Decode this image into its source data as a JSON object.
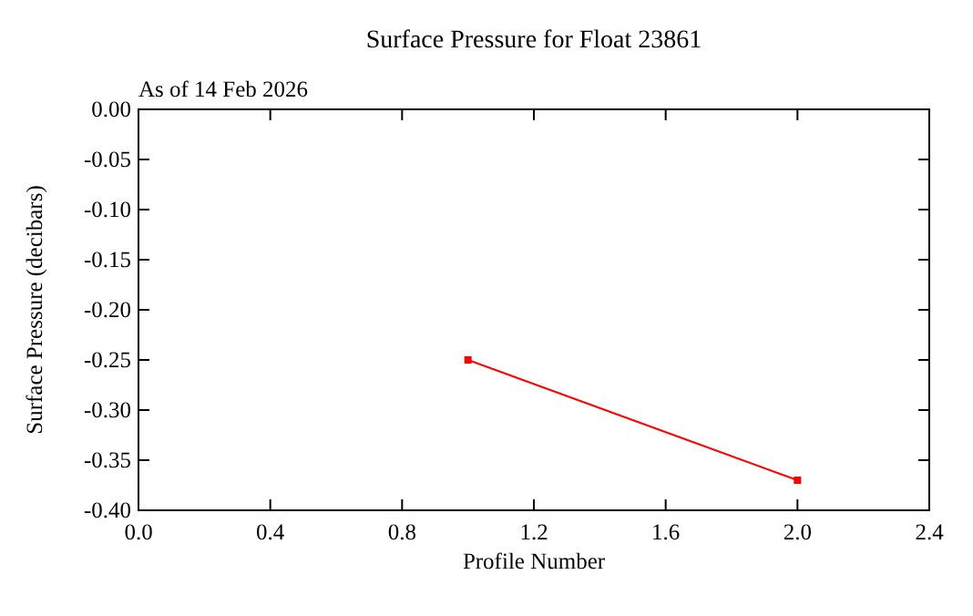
{
  "chart_data": {
    "type": "line",
    "title": "Surface Pressure for Float 23861",
    "subtitle": "As of 14 Feb 2026",
    "xlabel": "Profile Number",
    "ylabel": "Surface Pressure (decibars)",
    "x": [
      1,
      2
    ],
    "series": [
      {
        "color": "#ff0000",
        "values": [
          -0.25,
          -0.37
        ]
      }
    ],
    "marker": "square",
    "line_style": "solid",
    "xlim": [
      0,
      2.4
    ],
    "xticks": [
      {
        "value": 0,
        "label": "0.0"
      },
      {
        "value": 0.4,
        "label": "0.4"
      },
      {
        "value": 0.8,
        "label": "0.8"
      },
      {
        "value": 1.2,
        "label": "1.2"
      },
      {
        "value": 1.6,
        "label": "1.6"
      },
      {
        "value": 2.0,
        "label": "2.0"
      },
      {
        "value": 2.4,
        "label": "2.4"
      }
    ],
    "ylim": [
      -0.4,
      0
    ],
    "yticks": [
      {
        "value": 0,
        "label": "0.00"
      },
      {
        "value": -0.05,
        "label": "-0.05"
      },
      {
        "value": -0.1,
        "label": "-0.10"
      },
      {
        "value": -0.15,
        "label": "-0.15"
      },
      {
        "value": -0.2,
        "label": "-0.20"
      },
      {
        "value": -0.25,
        "label": "-0.25"
      },
      {
        "value": -0.3,
        "label": "-0.30"
      },
      {
        "value": -0.35,
        "label": "-0.35"
      },
      {
        "value": -0.4,
        "label": "-0.40"
      }
    ]
  }
}
